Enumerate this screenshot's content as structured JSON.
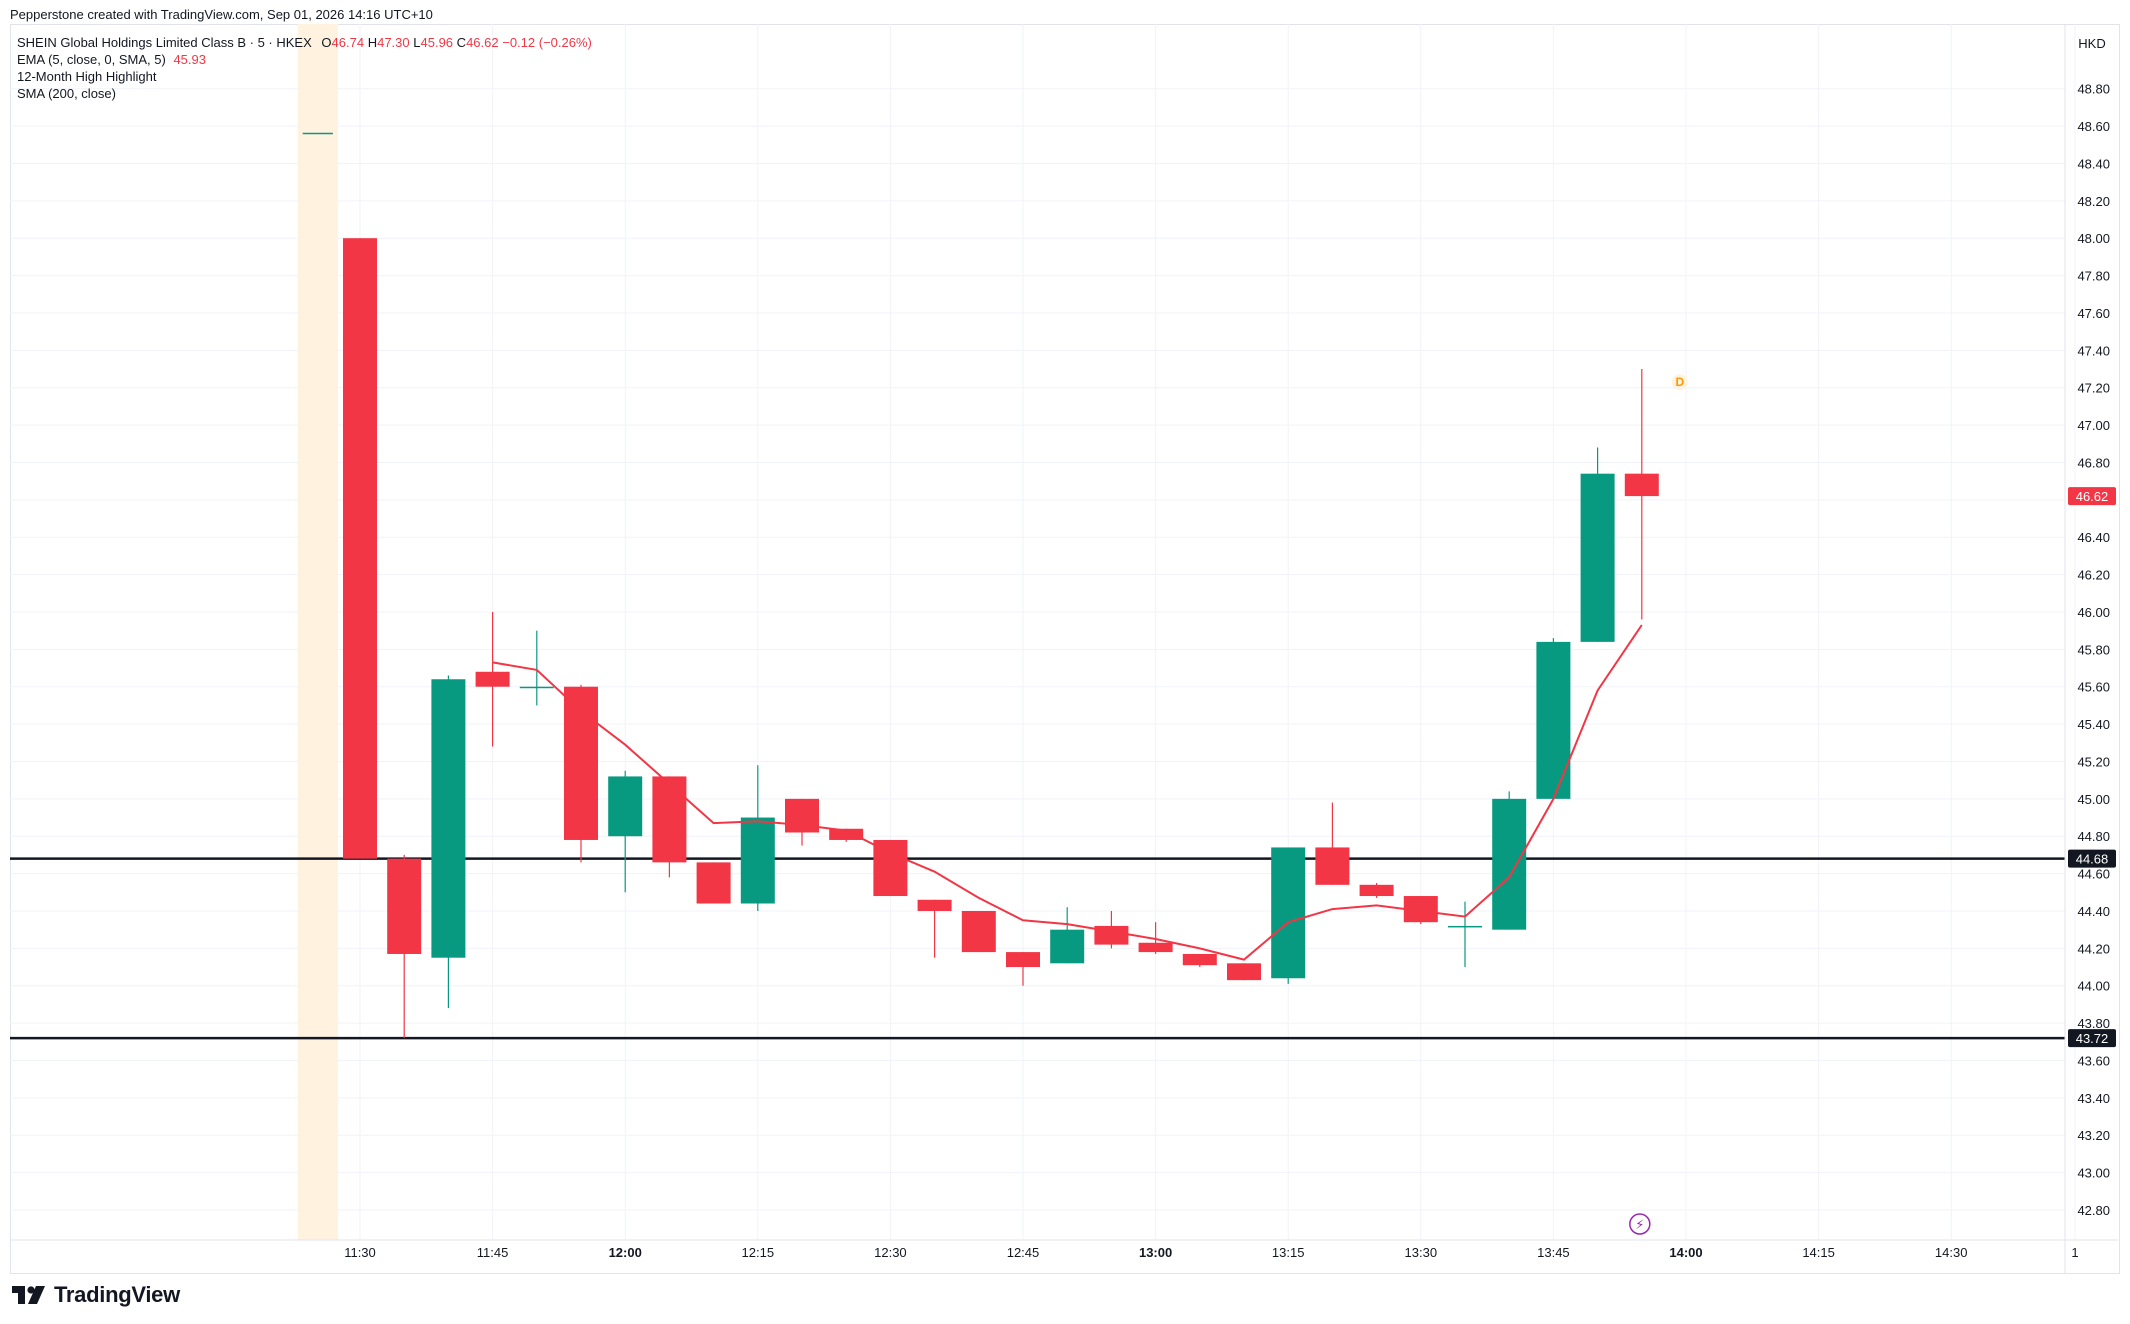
{
  "header": {
    "credit": "Pepperstone created with TradingView.com, Sep 01, 2026 14:16 UTC+10"
  },
  "legend": {
    "symbol": "SHEIN Global Holdings Limited Class B · 5 · HKEX",
    "o_label": "O",
    "o_value": "46.74",
    "h_label": "H",
    "h_value": "47.30",
    "l_label": "L",
    "l_value": "45.96",
    "c_label": "C",
    "c_value": "46.62",
    "change": "−0.12 (−0.26%)",
    "ema_label": "EMA (5, close, 0, SMA, 5)",
    "ema_value": "45.93",
    "highlight_label": "12-Month High Highlight",
    "sma_label": "SMA (200, close)"
  },
  "footer": {
    "brand": "TradingView"
  },
  "colors": {
    "up": "#089981",
    "down": "#f23645",
    "ema": "#f23645",
    "hline": "#131722",
    "highlight_band": "#fff3e0",
    "grid": "#f0f3fa",
    "axis_text": "#131722"
  },
  "chart_data": {
    "type": "candlestick",
    "currency": "HKD",
    "ylim": [
      42.7,
      48.95
    ],
    "y_ticks": [
      "42.80",
      "43.00",
      "43.20",
      "43.40",
      "43.60",
      "43.80",
      "44.00",
      "44.20",
      "44.40",
      "44.60",
      "44.80",
      "45.00",
      "45.20",
      "45.40",
      "45.60",
      "45.80",
      "46.00",
      "46.20",
      "46.40",
      "46.60",
      "46.80",
      "47.00",
      "47.20",
      "47.40",
      "47.60",
      "47.80",
      "48.00",
      "48.20",
      "48.40",
      "48.60",
      "48.80"
    ],
    "x_ticks": [
      {
        "label": "11:30",
        "time": "11:30",
        "bold": false
      },
      {
        "label": "11:45",
        "time": "11:45",
        "bold": false
      },
      {
        "label": "12:00",
        "time": "12:00",
        "bold": true
      },
      {
        "label": "12:15",
        "time": "12:15",
        "bold": false
      },
      {
        "label": "12:30",
        "time": "12:30",
        "bold": false
      },
      {
        "label": "12:45",
        "time": "12:45",
        "bold": false
      },
      {
        "label": "13:00",
        "time": "13:00",
        "bold": true
      },
      {
        "label": "13:15",
        "time": "13:15",
        "bold": false
      },
      {
        "label": "13:30",
        "time": "13:30",
        "bold": false
      },
      {
        "label": "13:45",
        "time": "13:45",
        "bold": false
      },
      {
        "label": "14:00",
        "time": "14:00",
        "bold": true
      },
      {
        "label": "14:15",
        "time": "14:15",
        "bold": false
      },
      {
        "label": "14:30",
        "time": "14:30",
        "bold": false
      },
      {
        "label": "1",
        "time": "14:44",
        "bold": false
      }
    ],
    "x_time_range": [
      "11:22",
      "14:45"
    ],
    "candles": [
      {
        "t": "11:30",
        "o": 48.0,
        "h": 48.0,
        "l": 44.68,
        "c": 44.68
      },
      {
        "t": "11:35",
        "o": 44.68,
        "h": 44.7,
        "l": 43.72,
        "c": 44.17
      },
      {
        "t": "11:40",
        "o": 44.15,
        "h": 45.66,
        "l": 43.88,
        "c": 45.64
      },
      {
        "t": "11:45",
        "o": 45.68,
        "h": 46.0,
        "l": 45.28,
        "c": 45.6
      },
      {
        "t": "11:50",
        "o": 45.6,
        "h": 45.9,
        "l": 45.5,
        "c": 45.6
      },
      {
        "t": "11:55",
        "o": 45.6,
        "h": 45.61,
        "l": 44.66,
        "c": 44.78
      },
      {
        "t": "12:00",
        "o": 44.8,
        "h": 45.15,
        "l": 44.5,
        "c": 45.12
      },
      {
        "t": "12:05",
        "o": 45.12,
        "h": 45.12,
        "l": 44.58,
        "c": 44.66
      },
      {
        "t": "12:10",
        "o": 44.66,
        "h": 44.66,
        "l": 44.44,
        "c": 44.44
      },
      {
        "t": "12:15",
        "o": 44.44,
        "h": 45.18,
        "l": 44.4,
        "c": 44.9
      },
      {
        "t": "12:20",
        "o": 45.0,
        "h": 45.0,
        "l": 44.75,
        "c": 44.82
      },
      {
        "t": "12:25",
        "o": 44.84,
        "h": 44.84,
        "l": 44.77,
        "c": 44.78
      },
      {
        "t": "12:30",
        "o": 44.78,
        "h": 44.78,
        "l": 44.48,
        "c": 44.48
      },
      {
        "t": "12:35",
        "o": 44.46,
        "h": 44.46,
        "l": 44.15,
        "c": 44.4
      },
      {
        "t": "12:40",
        "o": 44.4,
        "h": 44.4,
        "l": 44.18,
        "c": 44.18
      },
      {
        "t": "12:45",
        "o": 44.18,
        "h": 44.18,
        "l": 44.0,
        "c": 44.1
      },
      {
        "t": "12:50",
        "o": 44.12,
        "h": 44.42,
        "l": 44.12,
        "c": 44.3
      },
      {
        "t": "12:55",
        "o": 44.32,
        "h": 44.4,
        "l": 44.2,
        "c": 44.22
      },
      {
        "t": "13:00",
        "o": 44.23,
        "h": 44.34,
        "l": 44.17,
        "c": 44.18
      },
      {
        "t": "13:05",
        "o": 44.17,
        "h": 44.17,
        "l": 44.1,
        "c": 44.11
      },
      {
        "t": "13:10",
        "o": 44.12,
        "h": 44.12,
        "l": 44.03,
        "c": 44.03
      },
      {
        "t": "13:15",
        "o": 44.04,
        "h": 44.74,
        "l": 44.01,
        "c": 44.74
      },
      {
        "t": "13:20",
        "o": 44.74,
        "h": 44.98,
        "l": 44.54,
        "c": 44.54
      },
      {
        "t": "13:25",
        "o": 44.54,
        "h": 44.55,
        "l": 44.47,
        "c": 44.48
      },
      {
        "t": "13:30",
        "o": 44.48,
        "h": 44.48,
        "l": 44.33,
        "c": 44.34
      },
      {
        "t": "13:35",
        "o": 44.32,
        "h": 44.45,
        "l": 44.1,
        "c": 44.32
      },
      {
        "t": "13:40",
        "o": 44.3,
        "h": 45.04,
        "l": 44.3,
        "c": 45.0
      },
      {
        "t": "13:45",
        "o": 45.0,
        "h": 45.86,
        "l": 45.0,
        "c": 45.84
      },
      {
        "t": "13:50",
        "o": 45.84,
        "h": 46.88,
        "l": 45.84,
        "c": 46.74
      },
      {
        "t": "13:55",
        "o": 46.74,
        "h": 47.3,
        "l": 45.96,
        "c": 46.62
      }
    ],
    "ema": [
      {
        "t": "11:45",
        "v": 45.73
      },
      {
        "t": "11:50",
        "v": 45.69
      },
      {
        "t": "11:55",
        "v": 45.47
      },
      {
        "t": "12:00",
        "v": 45.29
      },
      {
        "t": "12:05",
        "v": 45.08
      },
      {
        "t": "12:10",
        "v": 44.87
      },
      {
        "t": "12:15",
        "v": 44.88
      },
      {
        "t": "12:20",
        "v": 44.86
      },
      {
        "t": "12:25",
        "v": 44.83
      },
      {
        "t": "12:30",
        "v": 44.71
      },
      {
        "t": "12:35",
        "v": 44.61
      },
      {
        "t": "12:40",
        "v": 44.47
      },
      {
        "t": "12:45",
        "v": 44.35
      },
      {
        "t": "12:50",
        "v": 44.33
      },
      {
        "t": "12:55",
        "v": 44.29
      },
      {
        "t": "13:00",
        "v": 44.25
      },
      {
        "t": "13:05",
        "v": 44.2
      },
      {
        "t": "13:10",
        "v": 44.14
      },
      {
        "t": "13:15",
        "v": 44.34
      },
      {
        "t": "13:20",
        "v": 44.41
      },
      {
        "t": "13:25",
        "v": 44.43
      },
      {
        "t": "13:30",
        "v": 44.4
      },
      {
        "t": "13:35",
        "v": 44.37
      },
      {
        "t": "13:40",
        "v": 44.58
      },
      {
        "t": "13:45",
        "v": 45.0
      },
      {
        "t": "13:50",
        "v": 45.58
      },
      {
        "t": "13:55",
        "v": 45.93
      }
    ],
    "horizontal_lines": [
      {
        "value": 44.68,
        "label": "44.68"
      },
      {
        "value": 43.72,
        "label": "43.72"
      }
    ],
    "last_price": {
      "value": 46.62,
      "label": "46.62"
    },
    "highlight_band": {
      "start": "11:25",
      "end": "11:30",
      "marker_value": 48.56
    },
    "markers": [
      {
        "type": "dividend",
        "t": "13:55",
        "value": 47.23,
        "label": "D"
      },
      {
        "type": "event",
        "t": "13:55",
        "label": "⚡"
      }
    ]
  }
}
